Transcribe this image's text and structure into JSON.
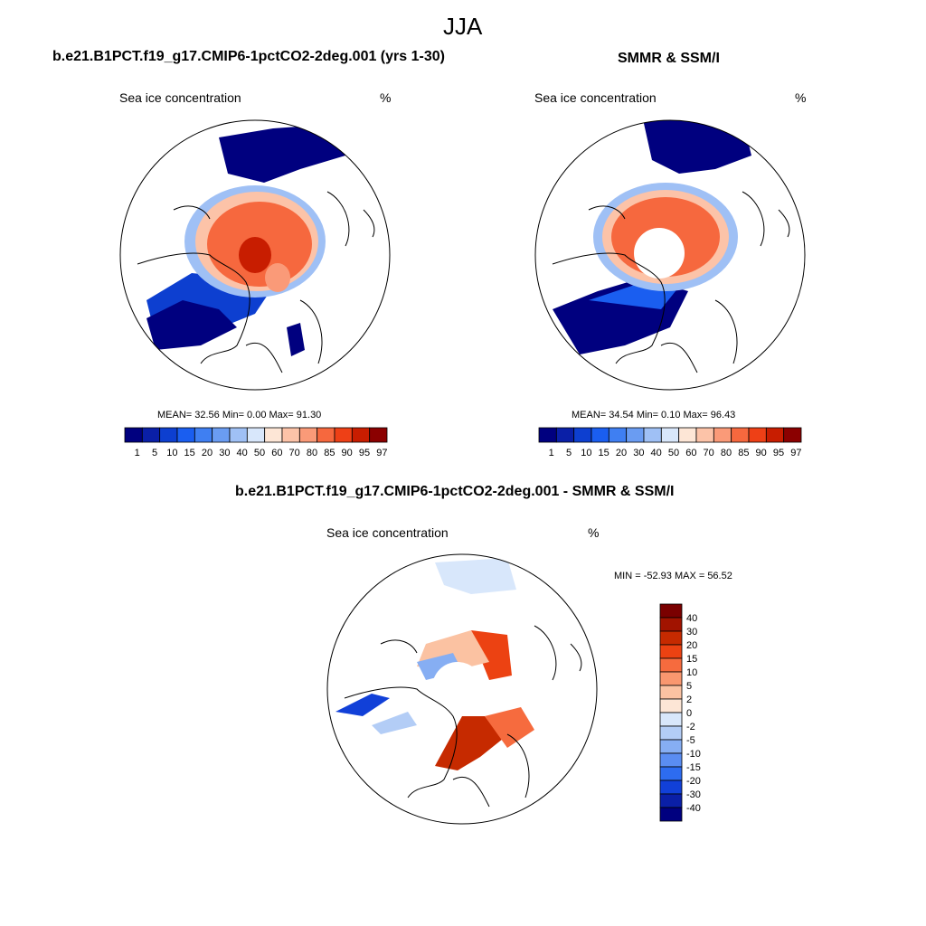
{
  "season": "JJA",
  "units": "%",
  "panels": {
    "model": {
      "title": "b.e21.B1PCT.f19_g17.CMIP6-1pctCO2-2deg.001 (yrs 1-30)",
      "variable": "Sea ice concentration",
      "units": "%",
      "stats": "MEAN=  32.56  Min=   0.00  Max=  91.30",
      "mean": 32.56,
      "min": 0.0,
      "max": 91.3
    },
    "obs": {
      "title": "SMMR & SSM/I",
      "variable": "Sea ice concentration",
      "units": "%",
      "stats": "MEAN=  34.54  Min=   0.10  Max=  96.43",
      "mean": 34.54,
      "min": 0.1,
      "max": 96.43
    },
    "diff": {
      "title": "b.e21.B1PCT.f19_g17.CMIP6-1pctCO2-2deg.001 - SMMR & SSM/I",
      "variable": "Sea ice concentration",
      "units": "%",
      "stats": "MIN = -52.93 MAX =  56.52",
      "min": -52.93,
      "max": 56.52
    }
  },
  "colorbar_levels": {
    "abs": [
      "1",
      "5",
      "10",
      "15",
      "20",
      "30",
      "40",
      "50",
      "60",
      "70",
      "80",
      "85",
      "90",
      "95",
      "97"
    ],
    "diff": [
      "40",
      "30",
      "20",
      "15",
      "10",
      "5",
      "2",
      "0",
      "-2",
      "-5",
      "-10",
      "-15",
      "-20",
      "-30",
      "-40"
    ]
  },
  "colors": {
    "abs": [
      "#00007f",
      "#0a1fa7",
      "#0d3fd0",
      "#1a5ef0",
      "#3f7ff2",
      "#6a9cf2",
      "#9fc0f5",
      "#d8e7fb",
      "#fde6d6",
      "#fcc3a8",
      "#fa9a78",
      "#f6683e",
      "#ee4016",
      "#c81d00",
      "#8b0000"
    ],
    "diff": [
      "#7a0000",
      "#a11300",
      "#c62a00",
      "#ec4212",
      "#f66b3e",
      "#f9976f",
      "#fbc2a2",
      "#fde6d6",
      "#d8e7fb",
      "#b3cdf6",
      "#86aef3",
      "#5a8df2",
      "#2d6cf0",
      "#1140d8",
      "#0a1fa7",
      "#00007f"
    ]
  }
}
